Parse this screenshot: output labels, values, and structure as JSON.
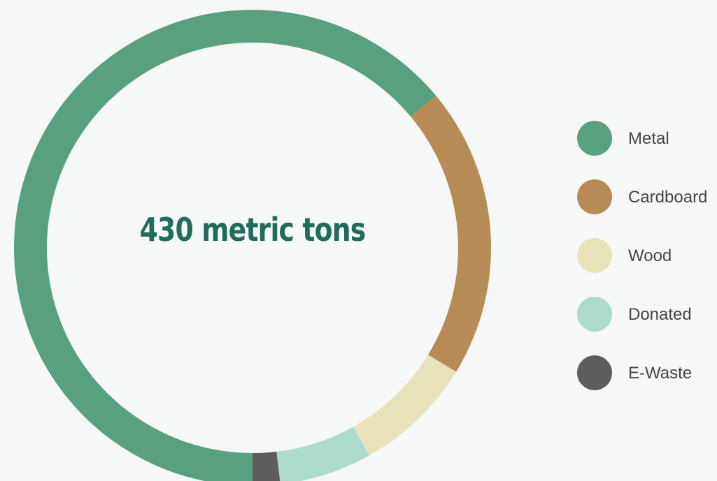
{
  "chart_data": {
    "type": "pie",
    "center_label": "430 metric tons",
    "categories": [
      "Metal",
      "Cardboard",
      "Wood",
      "Donated",
      "E-Waste"
    ],
    "values": [
      275,
      85,
      35,
      27,
      8
    ],
    "colors": [
      "#58a07f",
      "#b68b55",
      "#e8e2bb",
      "#acdbce",
      "#5d5d5f"
    ],
    "legend_position": "right",
    "start_angle_deg": 90,
    "direction": "clockwise"
  }
}
